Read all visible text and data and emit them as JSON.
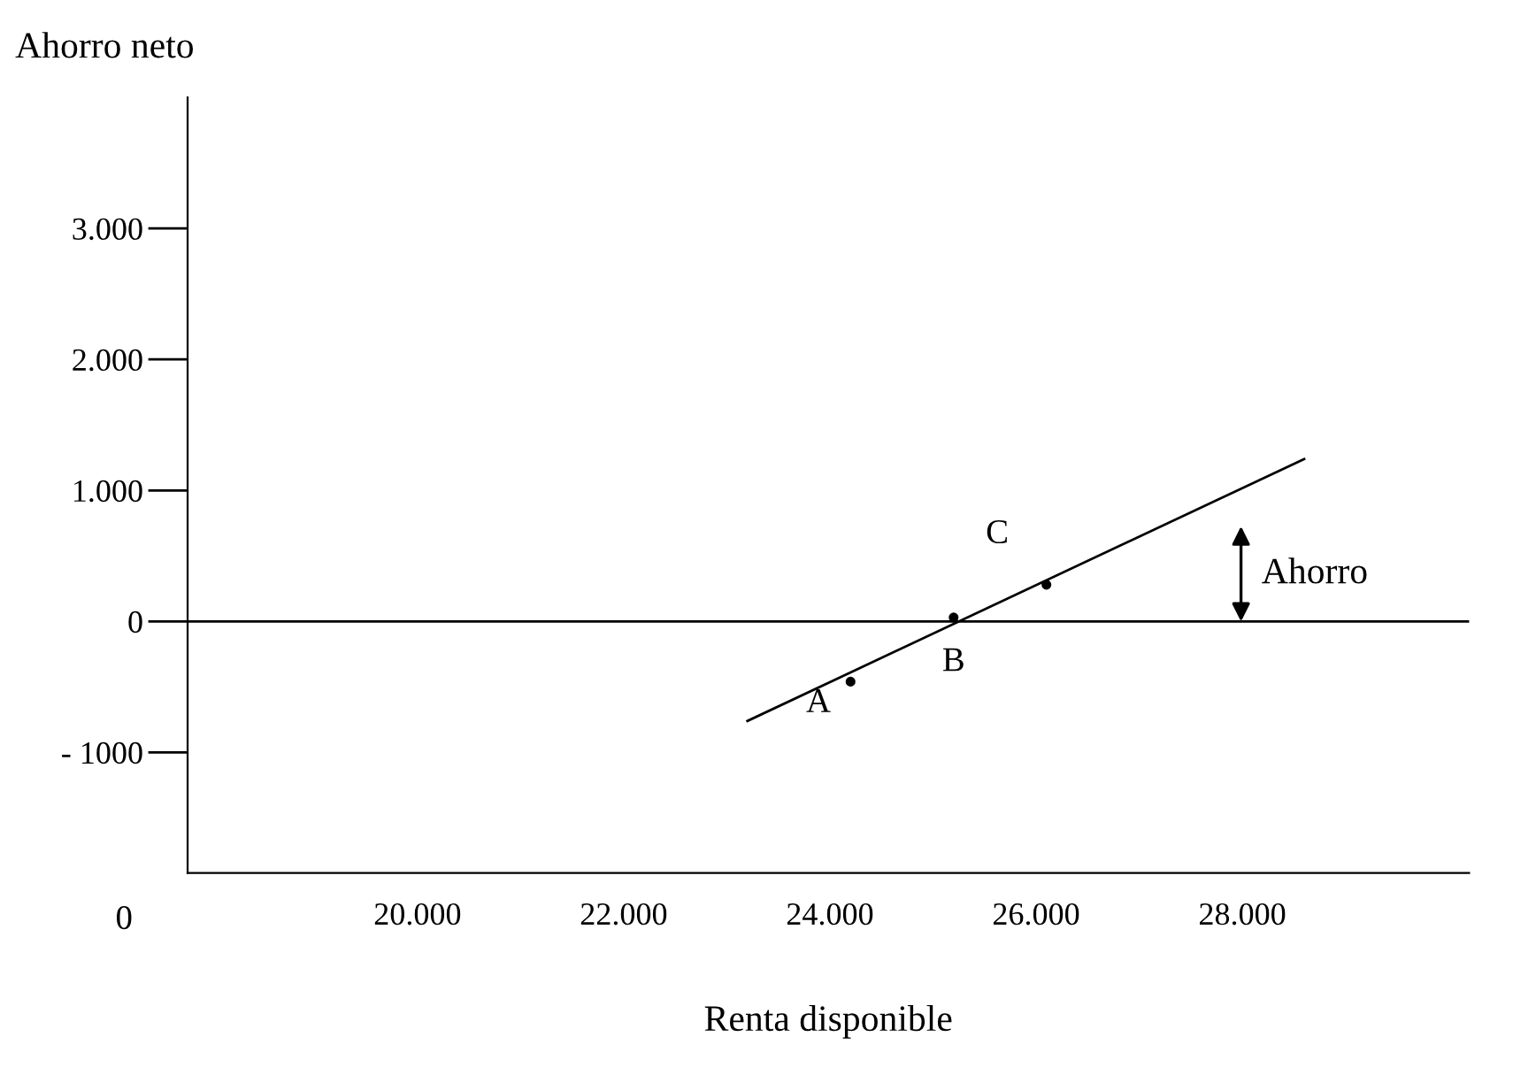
{
  "chart_data": {
    "type": "scatter",
    "xlabel": "Renta disponible",
    "ylabel": "Ahorro neto",
    "x": [
      24200,
      25200,
      26100
    ],
    "series": [
      {
        "color": "#000000",
        "marker": "circle",
        "values": [
          -460,
          30,
          280
        ]
      },
      {
        "type": "line",
        "color": "#000000",
        "marker": "none",
        "x": [
          23200,
          28600
        ],
        "values": [
          -760,
          1240
        ]
      }
    ],
    "xlim": [
      17770,
      30200
    ],
    "ylim": [
      -1920,
      4000
    ],
    "xticks": [
      {
        "value": 20000,
        "label": "20.000"
      },
      {
        "value": 22000,
        "label": "22.000"
      },
      {
        "value": 24000,
        "label": "24.000"
      },
      {
        "value": 26000,
        "label": "26.000"
      },
      {
        "value": 28000,
        "label": "28.000"
      }
    ],
    "yticks": [
      {
        "value": 3000,
        "label": "3.000"
      },
      {
        "value": 2000,
        "label": "2.000"
      },
      {
        "value": 1000,
        "label": "1.000"
      },
      {
        "value": 0,
        "label": "0"
      },
      {
        "value": -1000,
        "label": "- 1000"
      }
    ],
    "ref_lines": [
      {
        "axis": "y",
        "value": 0,
        "label": null,
        "color": "#000000"
      }
    ],
    "annotations": [
      {
        "text": "A",
        "x": 24200,
        "y": -460
      },
      {
        "text": "B",
        "x": 25200,
        "y": 30
      },
      {
        "text": "C",
        "x": 26100,
        "y": 280
      },
      "Ahorro",
      "0"
    ],
    "grid": false,
    "legend": false
  }
}
